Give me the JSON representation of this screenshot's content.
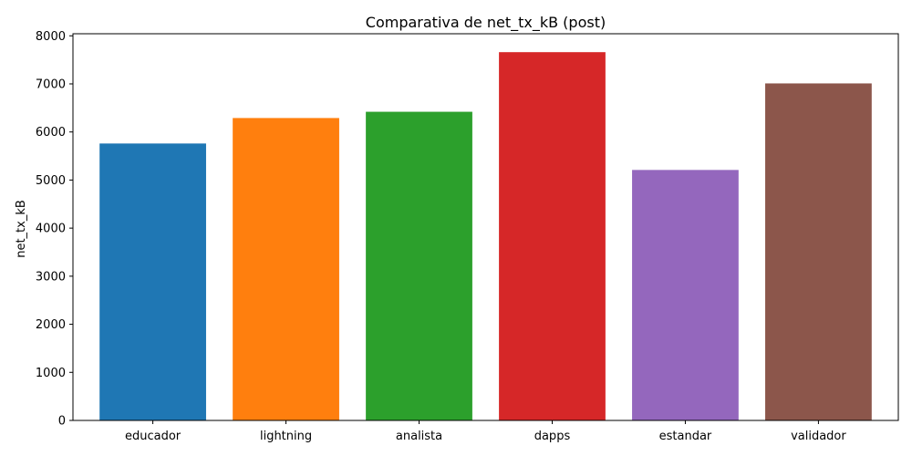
{
  "chart_data": {
    "type": "bar",
    "title": "Comparativa de net_tx_kB (post)",
    "xlabel": "",
    "ylabel": "net_tx_kB",
    "categories": [
      "educador",
      "lightning",
      "analista",
      "dapps",
      "estandar",
      "validador"
    ],
    "values": [
      5760,
      6290,
      6420,
      7660,
      5210,
      7010
    ],
    "colors": [
      "#1f77b4",
      "#ff7f0e",
      "#2ca02c",
      "#d62728",
      "#9467bd",
      "#8c564b"
    ],
    "ylim": [
      0,
      8043
    ],
    "yticks": [
      0,
      1000,
      2000,
      3000,
      4000,
      5000,
      6000,
      7000,
      8000
    ],
    "grid": false,
    "legend": "none"
  }
}
